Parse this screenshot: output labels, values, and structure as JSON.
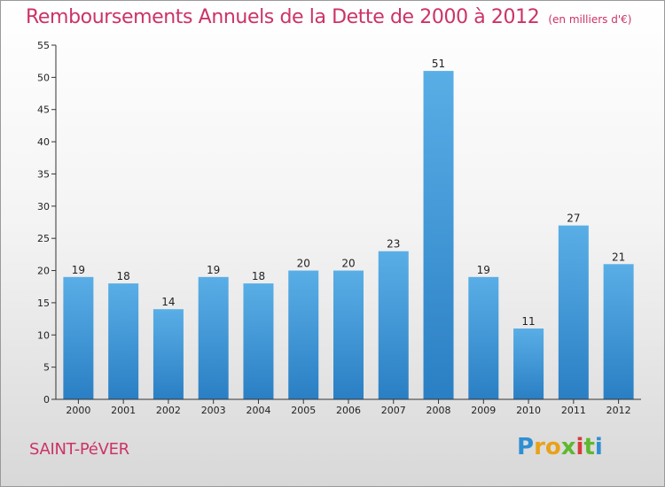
{
  "header": {
    "title": "Remboursements Annuels de la Dette de 2000 à 2012",
    "subtitle": "(en milliers d'€)"
  },
  "footer": {
    "city": "SAINT-PéVER",
    "logo": {
      "text": "Proxiti",
      "letters": [
        {
          "ch": "P",
          "color": "#2f8fd3"
        },
        {
          "ch": "r",
          "color": "#e8a21a"
        },
        {
          "ch": "o",
          "color": "#e8a21a"
        },
        {
          "ch": "x",
          "color": "#5fb830"
        },
        {
          "ch": "i",
          "color": "#d93a3a"
        },
        {
          "ch": "t",
          "color": "#5fb830"
        },
        {
          "ch": "i",
          "color": "#2f8fd3"
        }
      ]
    }
  },
  "chart_data": {
    "type": "bar",
    "title": "Remboursements Annuels de la Dette de 2000 à 2012",
    "subtitle": "(en milliers d'€)",
    "xlabel": "",
    "ylabel": "",
    "categories": [
      "2000",
      "2001",
      "2002",
      "2003",
      "2004",
      "2005",
      "2006",
      "2007",
      "2008",
      "2009",
      "2010",
      "2011",
      "2012"
    ],
    "values": [
      19,
      18,
      14,
      19,
      18,
      20,
      20,
      23,
      51,
      19,
      11,
      27,
      21
    ],
    "ylim": [
      0,
      55
    ],
    "yticks": [
      0,
      5,
      10,
      15,
      20,
      25,
      30,
      35,
      40,
      45,
      50,
      55
    ],
    "grid": false,
    "legend": "none",
    "bar_color_light": "#5aaee6",
    "bar_color_dark": "#2a7fc4"
  }
}
